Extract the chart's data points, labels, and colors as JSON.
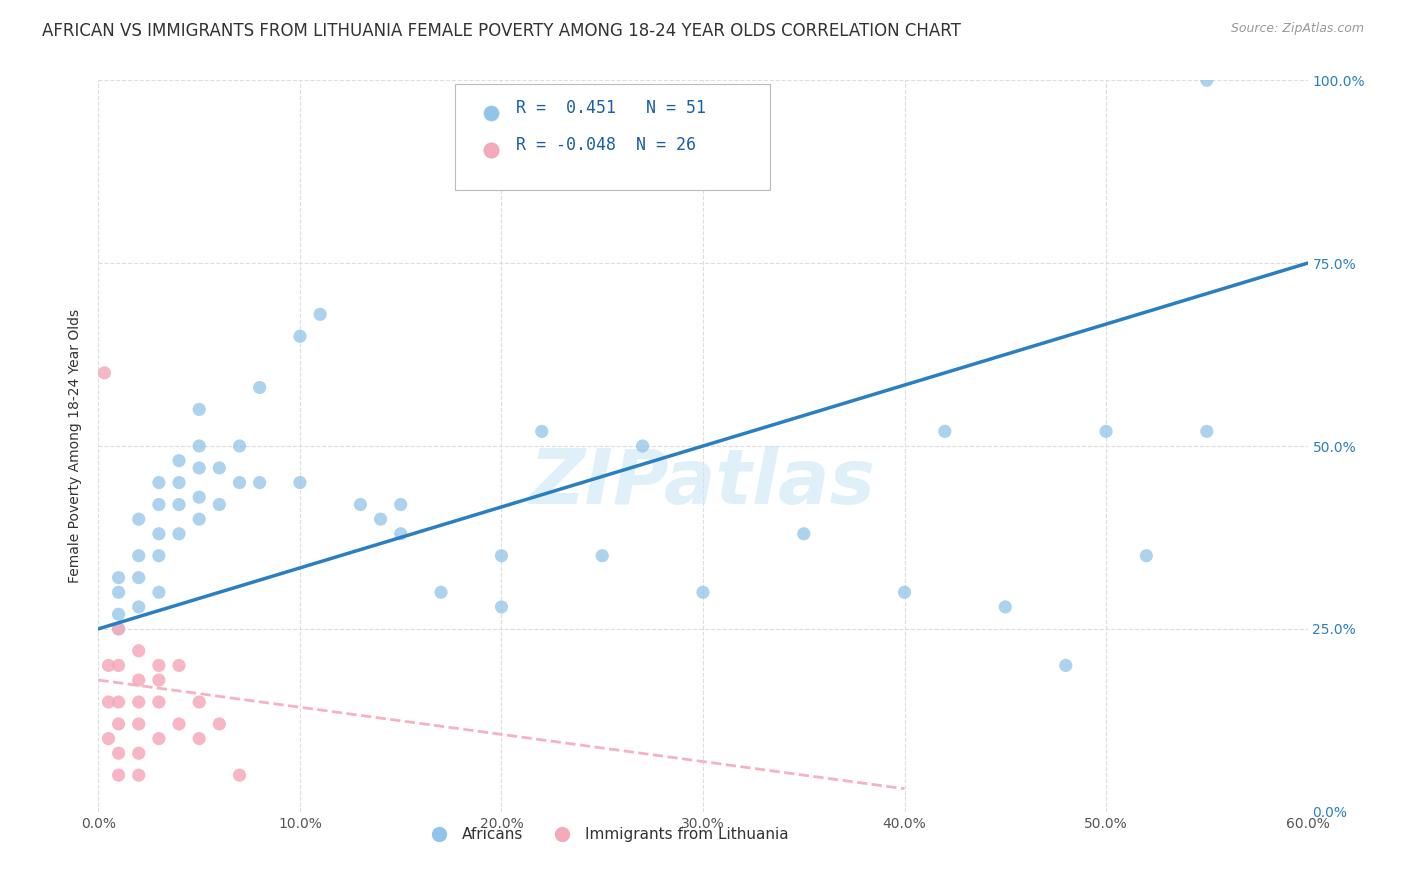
{
  "title": "AFRICAN VS IMMIGRANTS FROM LITHUANIA FEMALE POVERTY AMONG 18-24 YEAR OLDS CORRELATION CHART",
  "source": "Source: ZipAtlas.com",
  "ylabel": "Female Poverty Among 18-24 Year Olds",
  "xlabel_vals": [
    0,
    10,
    20,
    30,
    40,
    50,
    60
  ],
  "ylabel_vals": [
    0,
    25,
    50,
    75,
    100
  ],
  "xlim": [
    0,
    60
  ],
  "ylim": [
    0,
    100
  ],
  "blue_R": 0.451,
  "blue_N": 51,
  "pink_R": -0.048,
  "pink_N": 26,
  "blue_color": "#90c4e8",
  "pink_color": "#f5aabb",
  "blue_line_color": "#2a7fc1",
  "pink_line_color": "#f5aabb",
  "watermark": "ZIPatlas",
  "blue_line_x0": 0,
  "blue_line_y0": 25,
  "blue_line_x1": 60,
  "blue_line_y1": 75,
  "pink_line_x0": 0,
  "pink_line_y0": 18,
  "pink_line_x1": 35,
  "pink_line_y1": 5,
  "blue_points_x": [
    1,
    1,
    1,
    1,
    2,
    2,
    2,
    2,
    3,
    3,
    3,
    3,
    3,
    4,
    4,
    4,
    4,
    5,
    5,
    5,
    5,
    5,
    6,
    6,
    7,
    7,
    8,
    8,
    10,
    10,
    11,
    13,
    14,
    15,
    15,
    17,
    20,
    20,
    22,
    25,
    27,
    30,
    35,
    40,
    42,
    45,
    48,
    50,
    52,
    55,
    55
  ],
  "blue_points_y": [
    25,
    27,
    30,
    32,
    28,
    32,
    35,
    40,
    30,
    35,
    38,
    42,
    45,
    38,
    42,
    45,
    48,
    40,
    43,
    47,
    50,
    55,
    42,
    47,
    45,
    50,
    45,
    58,
    45,
    65,
    68,
    42,
    40,
    38,
    42,
    30,
    28,
    35,
    52,
    35,
    50,
    30,
    38,
    30,
    52,
    28,
    20,
    52,
    35,
    100,
    52
  ],
  "pink_points_x": [
    0.3,
    0.5,
    0.5,
    0.5,
    1,
    1,
    1,
    1,
    1,
    1,
    2,
    2,
    2,
    2,
    2,
    2,
    3,
    3,
    3,
    3,
    4,
    4,
    5,
    5,
    6,
    7
  ],
  "pink_points_y": [
    60,
    20,
    15,
    10,
    25,
    20,
    15,
    12,
    8,
    5,
    22,
    18,
    15,
    12,
    8,
    5,
    20,
    18,
    15,
    10,
    20,
    12,
    15,
    10,
    12,
    5
  ],
  "grid_color": "#dddddd",
  "title_fontsize": 12,
  "axis_label_fontsize": 10,
  "tick_fontsize": 10,
  "legend_fontsize": 12
}
